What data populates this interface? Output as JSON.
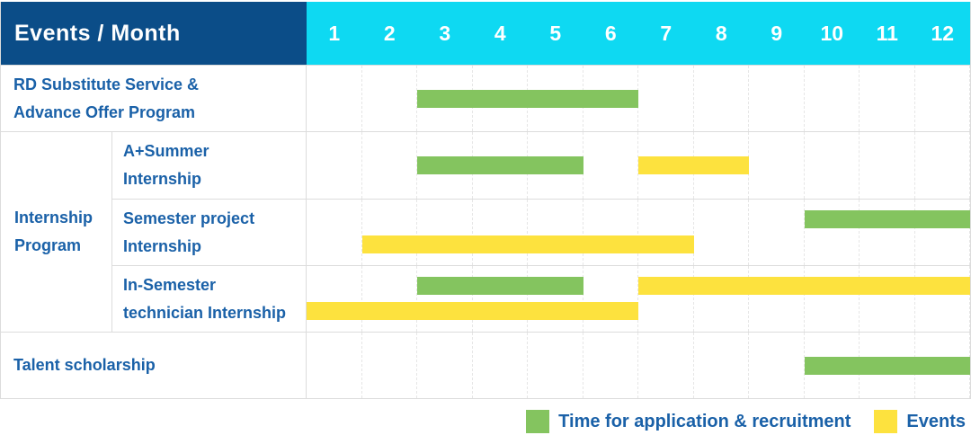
{
  "header": {
    "title": "Events / Month"
  },
  "colors": {
    "header_bg": "#0b4d88",
    "months_bg": "#0ed9f2",
    "label_text": "#1a61a8",
    "grid_line": "#dcdcdc",
    "application_green": "#84c45f",
    "events_yellow": "#fde23e"
  },
  "legend": {
    "green_label": "Time for application & recruitment",
    "yellow_label": "Events"
  },
  "chart_data": {
    "type": "gantt",
    "title": "Events / Month",
    "months": [
      "1",
      "2",
      "3",
      "4",
      "5",
      "6",
      "7",
      "8",
      "9",
      "10",
      "11",
      "12"
    ],
    "x_range": [
      1,
      12
    ],
    "bar_colors": {
      "application": "#84c45f",
      "events": "#fde23e"
    },
    "series_names": {
      "application": "Time for application & recruitment",
      "events": "Events"
    },
    "sections": [
      {
        "kind": "row",
        "label_lines": [
          "RD Substitute Service &",
          "Advance Offer Program"
        ],
        "bars": [
          {
            "series": "application",
            "start_month": 3,
            "end_month": 6,
            "lane": "center"
          }
        ]
      },
      {
        "kind": "group",
        "label_lines": [
          "Internship",
          "Program"
        ],
        "rows": [
          {
            "label_lines": [
              "A+Summer",
              "Internship"
            ],
            "bars": [
              {
                "series": "application",
                "start_month": 3,
                "end_month": 5,
                "lane": "center"
              },
              {
                "series": "events",
                "start_month": 7,
                "end_month": 8,
                "lane": "center"
              }
            ]
          },
          {
            "label_lines": [
              "Semester project",
              "Internship"
            ],
            "bars": [
              {
                "series": "application",
                "start_month": 10,
                "end_month": 12,
                "lane": "top"
              },
              {
                "series": "events",
                "start_month": 2,
                "end_month": 7,
                "lane": "bottom"
              }
            ]
          },
          {
            "label_lines": [
              "In-Semester",
              "technician Internship"
            ],
            "bars": [
              {
                "series": "application",
                "start_month": 3,
                "end_month": 5,
                "lane": "top"
              },
              {
                "series": "events",
                "start_month": 7,
                "end_month": 12,
                "lane": "top"
              },
              {
                "series": "events",
                "start_month": 1,
                "end_month": 6,
                "lane": "bottom"
              }
            ]
          }
        ]
      },
      {
        "kind": "row",
        "label_lines": [
          "Talent scholarship"
        ],
        "bars": [
          {
            "series": "application",
            "start_month": 10,
            "end_month": 12,
            "lane": "center"
          }
        ]
      }
    ]
  }
}
